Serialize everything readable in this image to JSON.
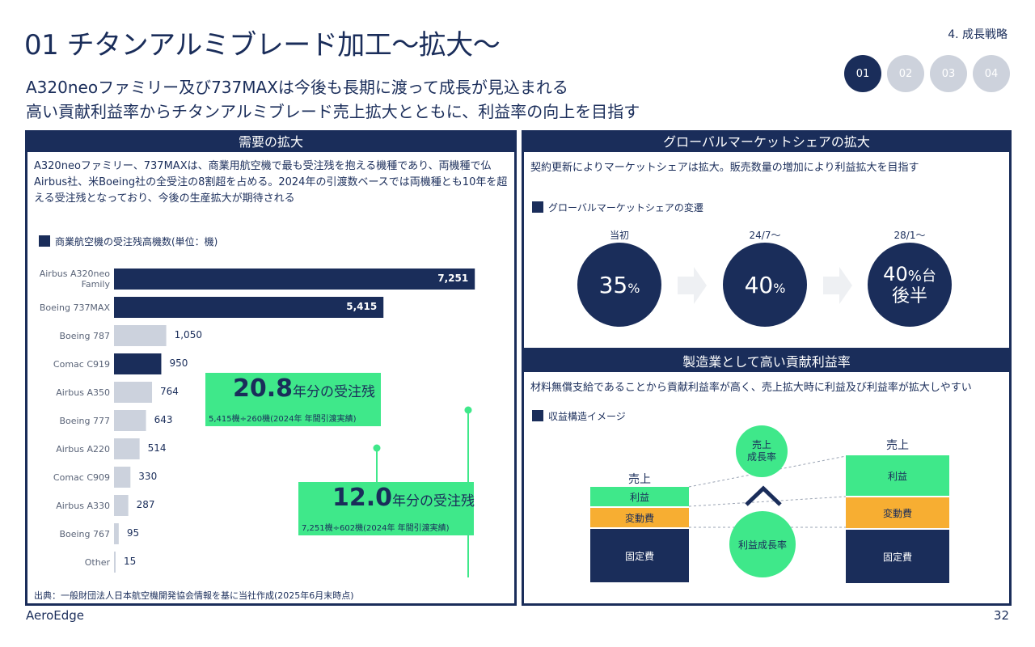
{
  "header": {
    "title": "01 チタンアルミブレード加工～拡大～",
    "section": "4. 成長戦略",
    "nav": [
      "01",
      "02",
      "03",
      "04"
    ],
    "subtitle_line1": "A320neoファミリー及び737MAXは今後も長期に渡って成長が見込まれる",
    "subtitle_line2": "高い貢献利益率からチタンアルミブレード売上拡大とともに、利益率の向上を目指す"
  },
  "left_panel": {
    "heading": "需要の拡大",
    "description": "A320neoファミリー、737MAXは、商業用航空機で最も受注残を抱える機種であり、両機種で仏Airbus社、米Boeing社の全受注の8割超を占める。2024年の引渡数ベースでは両機種とも10年を超える受注残となっており、今後の生産拡大が期待される",
    "legend": "商業航空機の受注残高機数(単位：機)",
    "source": "出典：一般財団法人日本航空機開発協会情報を基に当社作成(2025年6月末時点)",
    "callout_1": {
      "big": "20.8",
      "unit": "年分の受注残",
      "detail": "5,415機÷260機(2024年 年間引渡実績)"
    },
    "callout_2": {
      "big": "12.0",
      "unit": "年分の受注残",
      "detail": "7,251機÷602機(2024年 年間引渡実績)"
    }
  },
  "chart_data": {
    "type": "bar",
    "orientation": "horizontal",
    "categories": [
      "Airbus A320neo Family",
      "Boeing 737MAX",
      "Boeing 787",
      "Comac C919",
      "Airbus A350",
      "Boeing 777",
      "Airbus A220",
      "Comac C909",
      "Airbus A330",
      "Boeing 767",
      "Other"
    ],
    "values": [
      7251,
      5415,
      1050,
      950,
      764,
      643,
      514,
      330,
      287,
      95,
      15
    ],
    "value_labels": [
      "7,251",
      "5,415",
      "1,050",
      "950",
      "764",
      "643",
      "514",
      "330",
      "287",
      "95",
      "15"
    ],
    "highlighted": [
      true,
      true,
      false,
      true,
      false,
      false,
      false,
      false,
      false,
      false,
      false
    ],
    "colors": {
      "highlight": "#1a2d5a",
      "normal": "#ccd2dd"
    },
    "xlim": [
      0,
      7800
    ]
  },
  "right_top": {
    "heading": "グローバルマーケットシェアの拡大",
    "description": "契約更新によりマーケットシェアは拡大。販売数量の増加により利益拡大を目指す",
    "legend": "グローバルマーケットシェアの変遷",
    "stages": [
      {
        "label": "当初",
        "value": "35",
        "unit": "%"
      },
      {
        "label": "24/7～",
        "value": "40",
        "unit": "%"
      },
      {
        "label": "28/1～",
        "value": "40",
        "unit": "%台",
        "line2": "後半"
      }
    ]
  },
  "right_bottom": {
    "heading": "製造業として高い貢献利益率",
    "description": "材料無償支給であることから貢献利益率が高く、売上拡大時に利益及び利益率が拡大しやすい",
    "legend": "収益構造イメージ",
    "left_stack": {
      "title": "売上",
      "profit": "利益",
      "variable": "変動費",
      "fixed": "固定費"
    },
    "right_stack": {
      "title": "売上",
      "profit": "利益",
      "variable": "変動費",
      "fixed": "固定費"
    },
    "circle_sales_line1": "売上",
    "circle_sales_line2": "成長率",
    "circle_profit": "利益成長率"
  },
  "footer": {
    "brand": "AeroEdge",
    "page": "32"
  },
  "colors": {
    "navy": "#1a2d5a",
    "green": "#3fe88a",
    "orange": "#f7ae32",
    "grey": "#ccd2dd"
  }
}
